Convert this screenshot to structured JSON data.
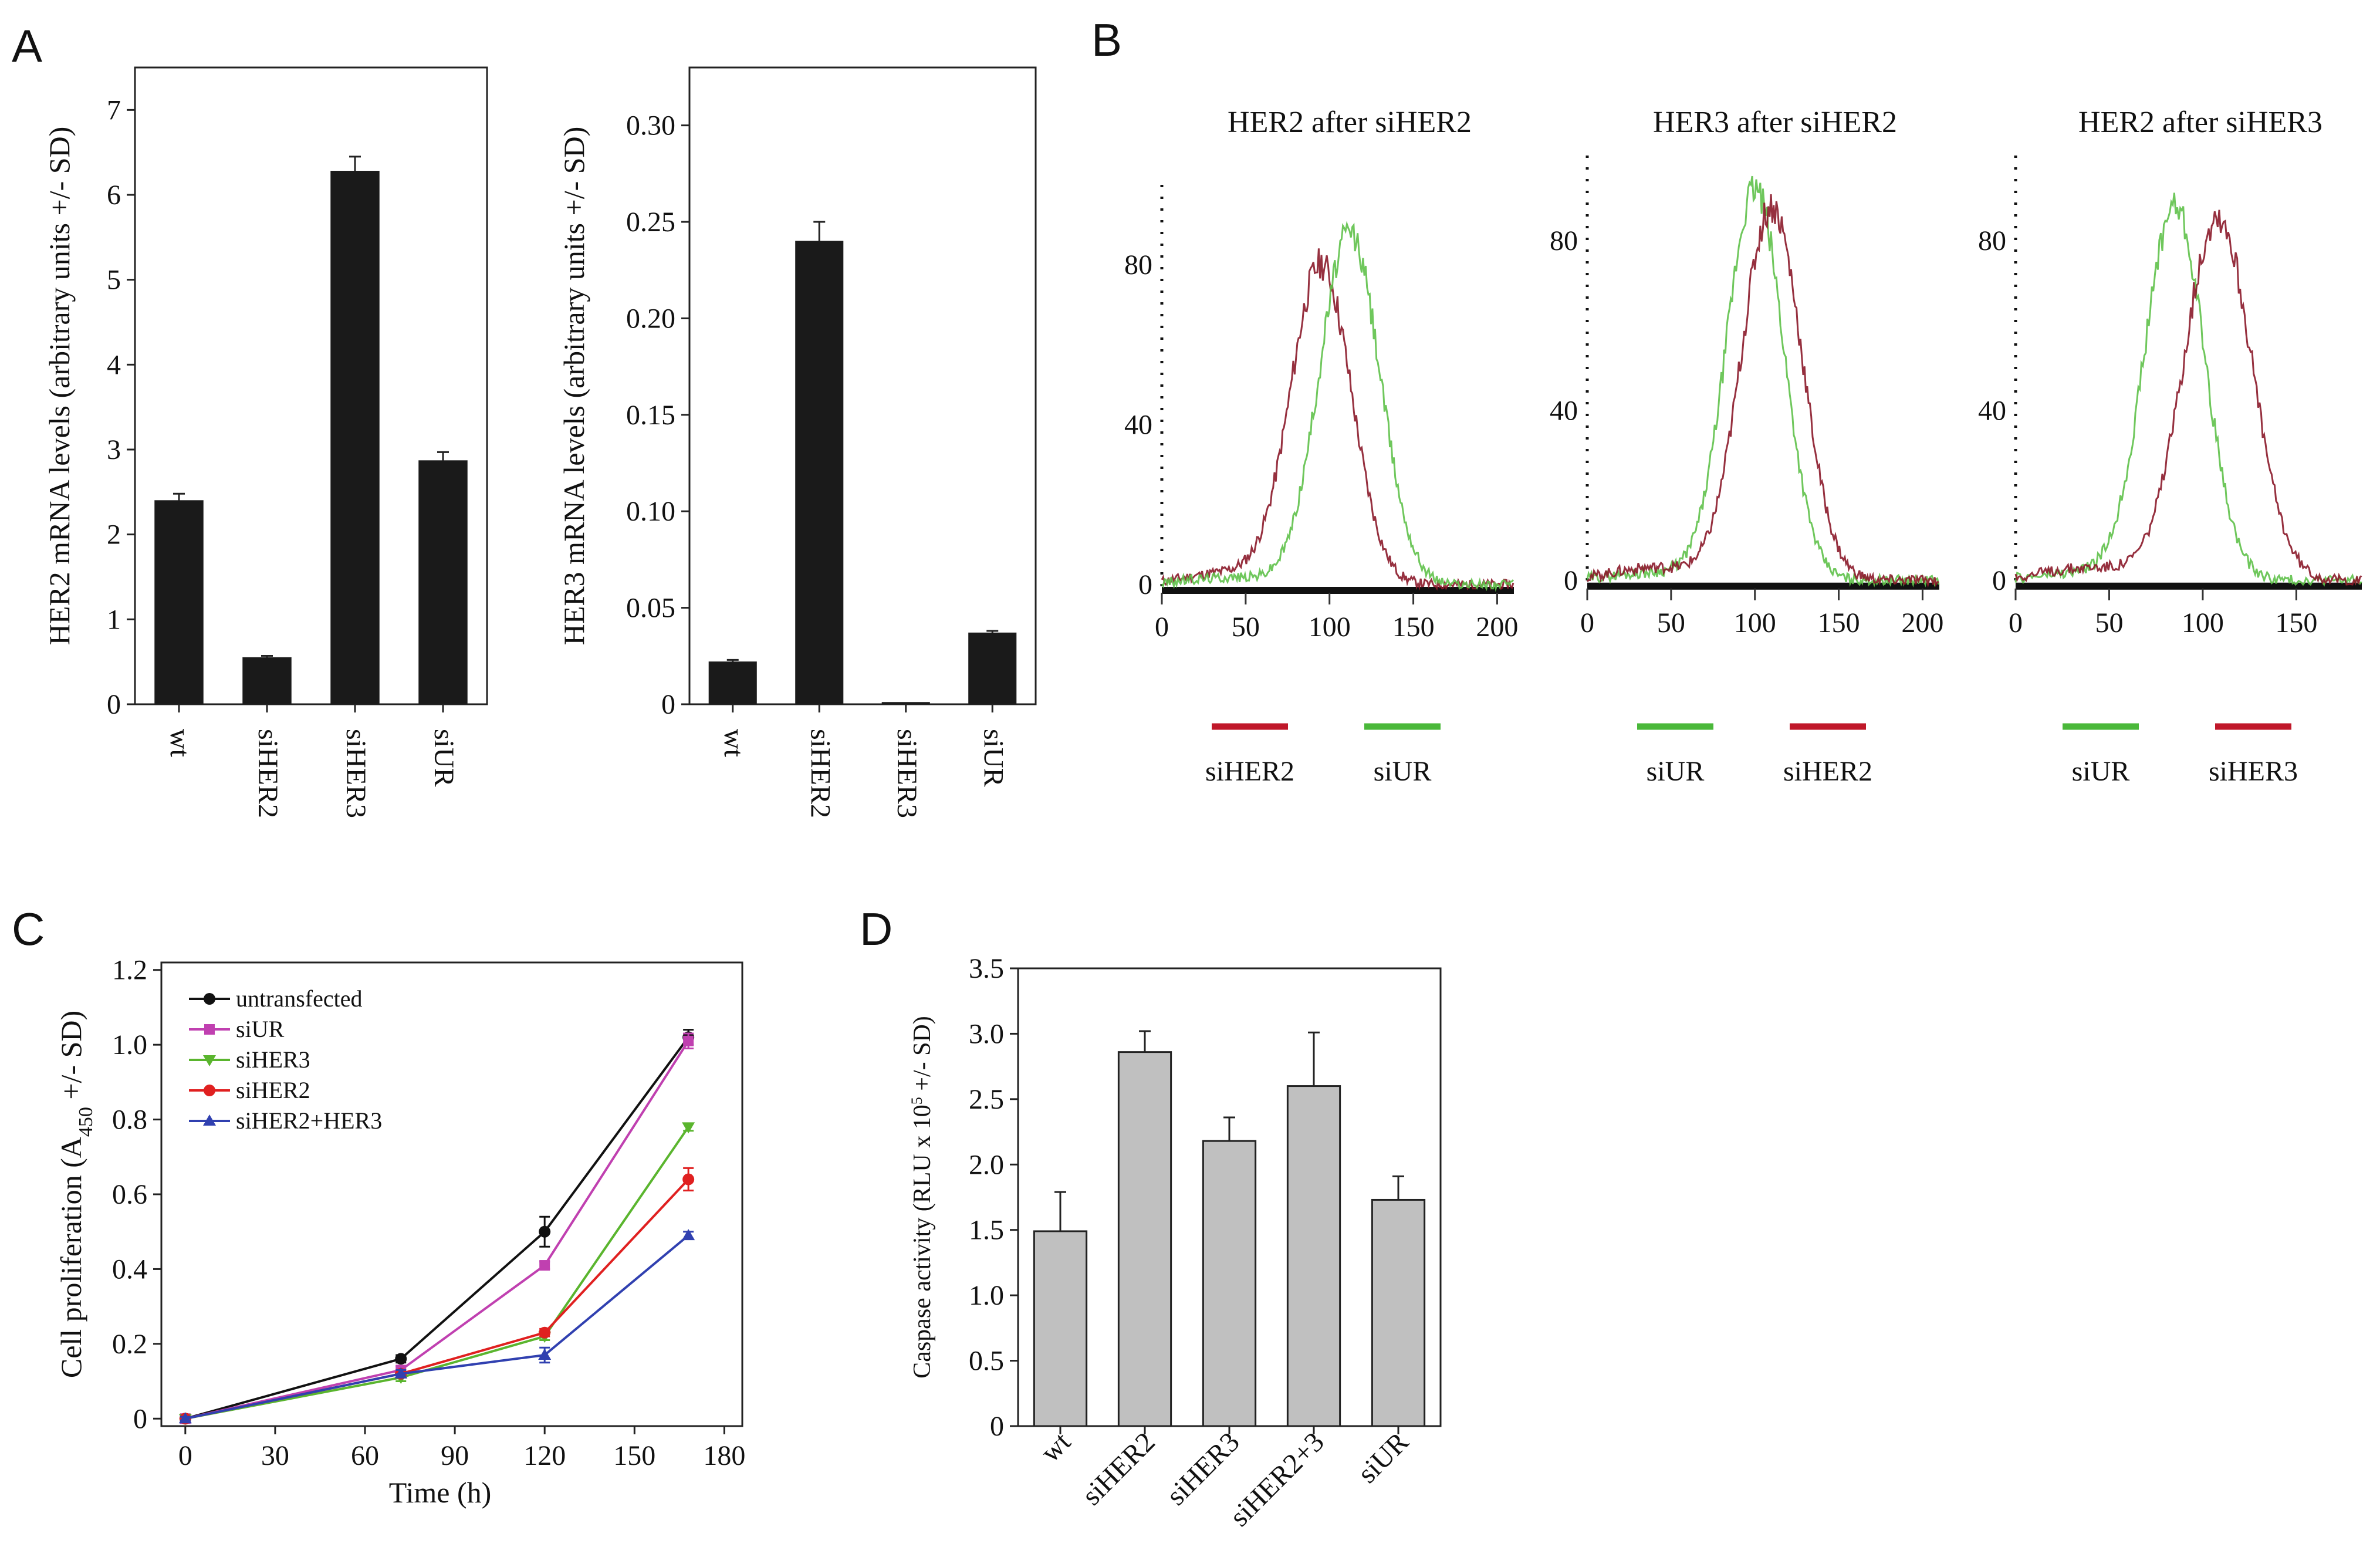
{
  "panels": {
    "a": "A",
    "b": "B",
    "c": "C",
    "d": "D"
  },
  "colors": {
    "bar_dark": "#1a1a1a",
    "bar_grey": "#c0c0c0",
    "red": "#c0182a",
    "green": "#4ab83a",
    "flow_red": "#8b1a2a",
    "flow_green": "#5fc14a"
  },
  "chart_data": [
    {
      "id": "A1",
      "type": "bar",
      "categories": [
        "wt",
        "siHER2",
        "siHER3",
        "siUR"
      ],
      "values": [
        2.4,
        0.55,
        6.28,
        2.87
      ],
      "errors": [
        0.08,
        0.02,
        0.17,
        0.1
      ],
      "ylabel": "HER2 mRNA levels (arbitrary units +/- SD)",
      "ylim": [
        0,
        7.5
      ],
      "yticks": [
        "0",
        "1",
        "2",
        "3",
        "4",
        "5",
        "6",
        "7"
      ]
    },
    {
      "id": "A2",
      "type": "bar",
      "categories": [
        "wt",
        "siHER2",
        "siHER3",
        "siUR"
      ],
      "values": [
        0.022,
        0.24,
        0.001,
        0.037
      ],
      "errors": [
        0.001,
        0.01,
        0.0,
        0.001
      ],
      "ylabel": "HER3 mRNA levels (arbitrary units +/- SD)",
      "ylim": [
        0,
        0.33
      ],
      "yticks": [
        "0",
        "0.05",
        "0.10",
        "0.15",
        "0.20",
        "0.25",
        "0.30"
      ]
    },
    {
      "id": "B1",
      "type": "line",
      "title": "HER2 after siHER2",
      "xlim": [
        0,
        210
      ],
      "ylim": [
        -5,
        100
      ],
      "xticks": [
        "0",
        "50",
        "100",
        "150",
        "200"
      ],
      "yticks": [
        "0",
        "40",
        "80"
      ],
      "series": [
        {
          "name": "siHER2",
          "color": "red",
          "peak": 95,
          "width": 18,
          "height": 80
        },
        {
          "name": "siUR",
          "color": "green",
          "peak": 112,
          "width": 18,
          "height": 88
        }
      ],
      "legend": [
        "siHER2",
        "siUR"
      ]
    },
    {
      "id": "B2",
      "type": "line",
      "title": "HER3 after siHER2",
      "xlim": [
        0,
        210
      ],
      "ylim": [
        -5,
        100
      ],
      "xticks": [
        "0",
        "50",
        "100",
        "150",
        "200"
      ],
      "yticks": [
        "0",
        "40",
        "80"
      ],
      "series": [
        {
          "name": "siUR",
          "color": "green",
          "peak": 100,
          "width": 17,
          "height": 92
        },
        {
          "name": "siHER2",
          "color": "red",
          "peak": 110,
          "width": 18,
          "height": 88
        }
      ],
      "legend": [
        "siUR",
        "siHER2"
      ]
    },
    {
      "id": "B3",
      "type": "line",
      "title": "HER2 after siHER3",
      "xlim": [
        0,
        185
      ],
      "ylim": [
        -5,
        100
      ],
      "xticks": [
        "0",
        "50",
        "100",
        "150"
      ],
      "yticks": [
        "0",
        "40",
        "80"
      ],
      "series": [
        {
          "name": "siUR",
          "color": "green",
          "peak": 85,
          "width": 16,
          "height": 88
        },
        {
          "name": "siHER3",
          "color": "red",
          "peak": 108,
          "width": 18,
          "height": 86
        }
      ],
      "legend": [
        "siUR",
        "siHER3"
      ]
    },
    {
      "id": "C",
      "type": "line",
      "xlabel": "Time (h)",
      "ylabel": "Cell proliferation (A",
      "ylabel_sub": "450",
      "ylabel_tail": " +/- SD)",
      "x": [
        0,
        72,
        120,
        168
      ],
      "xlim": [
        -8,
        186
      ],
      "ylim": [
        -0.02,
        1.22
      ],
      "xticks": [
        0,
        30,
        60,
        90,
        120,
        150,
        180
      ],
      "yticks": [
        "0",
        "0.2",
        "0.4",
        "0.6",
        "0.8",
        "1.0",
        "1.2"
      ],
      "series": [
        {
          "name": "untransfected",
          "color": "#111111",
          "marker": "circle",
          "values": [
            0.0,
            0.16,
            0.5,
            1.02
          ],
          "errors": [
            0.005,
            0.01,
            0.04,
            0.02
          ]
        },
        {
          "name": "siUR",
          "color": "#c040b0",
          "marker": "square",
          "values": [
            0.0,
            0.13,
            0.41,
            1.01
          ],
          "errors": [
            0.005,
            0.01,
            0.01,
            0.02
          ]
        },
        {
          "name": "siHER3",
          "color": "#5ab52e",
          "marker": "triangle-down",
          "values": [
            0.0,
            0.11,
            0.22,
            0.78
          ],
          "errors": [
            0.005,
            0.01,
            0.01,
            0.01
          ]
        },
        {
          "name": "siHER2",
          "color": "#e02020",
          "marker": "circle",
          "values": [
            0.0,
            0.12,
            0.23,
            0.64
          ],
          "errors": [
            0.005,
            0.01,
            0.01,
            0.03
          ]
        },
        {
          "name": "siHER2+HER3",
          "color": "#3040b0",
          "marker": "triangle-up",
          "values": [
            0.0,
            0.12,
            0.17,
            0.49
          ],
          "errors": [
            0.005,
            0.01,
            0.02,
            0.01
          ]
        }
      ]
    },
    {
      "id": "D",
      "type": "bar",
      "categories": [
        "wt",
        "siHER2",
        "siHER3",
        "siHER2+3",
        "siUR"
      ],
      "values": [
        1.49,
        2.86,
        2.18,
        2.6,
        1.73
      ],
      "errors": [
        0.3,
        0.16,
        0.18,
        0.41,
        0.18
      ],
      "ylabel": "Caspase activity (RLU x 10",
      "ylabel_sup": "5",
      "ylabel_tail": " +/- SD)",
      "ylim": [
        0,
        3.5
      ],
      "yticks": [
        "0",
        "0.5",
        "1.0",
        "1.5",
        "2.0",
        "2.5",
        "3.0",
        "3.5"
      ]
    }
  ]
}
